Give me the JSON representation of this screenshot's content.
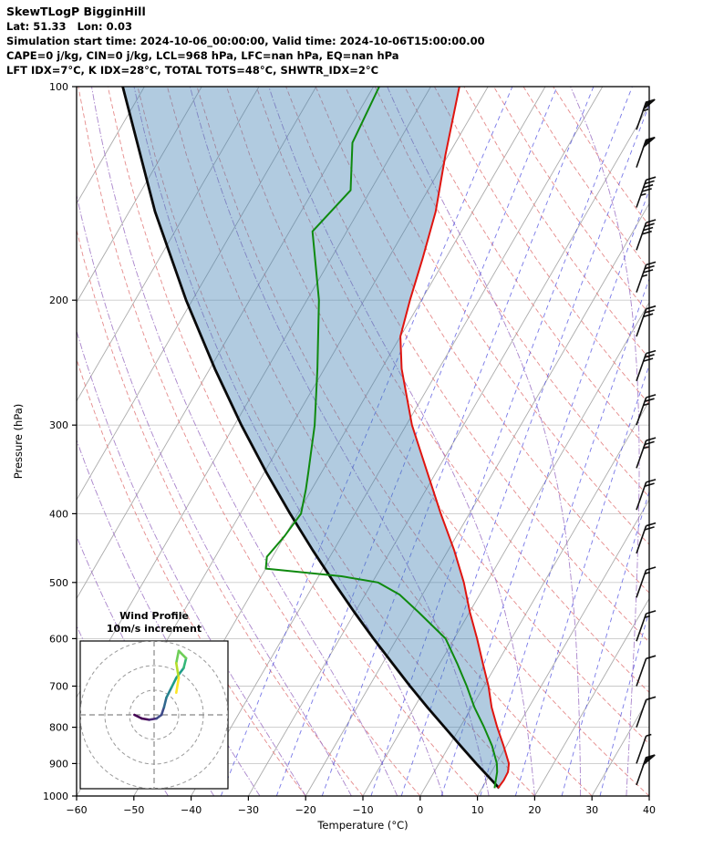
{
  "header": {
    "line1": "SkewTLogP BigginHill",
    "line2": "Lat: 51.33   Lon: 0.03",
    "line3": "Simulation start time: 2024-10-06_00:00:00, Valid time: 2024-10-06T15:00:00.00",
    "line4": "CAPE=0 j/kg, CIN=0 j/kg, LCL=968 hPa, LFC=nan hPa, EQ=nan hPa",
    "line5": "LFT IDX=7°C, K IDX=28°C, TOTAL TOTS=48°C, SHWTR_IDX=2°C"
  },
  "chart_data": {
    "type": "skewt-log-p",
    "x_axis": {
      "label": "Temperature (°C)",
      "ticks": [
        -60,
        -50,
        -40,
        -30,
        -20,
        -10,
        0,
        10,
        20,
        30,
        40
      ],
      "range": [
        -60,
        40
      ]
    },
    "y_axis": {
      "label": "Pressure (hPa)",
      "ticks": [
        100,
        200,
        300,
        400,
        500,
        600,
        700,
        800,
        900,
        1000
      ],
      "range_hpa": [
        100,
        1000
      ],
      "scale": "log"
    },
    "temperature_profile": {
      "color": "#e01510",
      "points": [
        [
          975,
          12.8
        ],
        [
          950,
          13.0
        ],
        [
          925,
          12.9
        ],
        [
          900,
          12.2
        ],
        [
          850,
          9.5
        ],
        [
          800,
          6.5
        ],
        [
          750,
          3.5
        ],
        [
          700,
          0.8
        ],
        [
          650,
          -2.5
        ],
        [
          600,
          -6.0
        ],
        [
          550,
          -10.0
        ],
        [
          500,
          -14.0
        ],
        [
          450,
          -19.0
        ],
        [
          400,
          -25.0
        ],
        [
          350,
          -31.5
        ],
        [
          300,
          -39.0
        ],
        [
          250,
          -46.5
        ],
        [
          225,
          -50.0
        ],
        [
          200,
          -52.0
        ],
        [
          175,
          -54.0
        ],
        [
          150,
          -56.5
        ],
        [
          125,
          -60.5
        ],
        [
          100,
          -65.0
        ]
      ]
    },
    "dewpoint_profile": {
      "color": "#0f8a0f",
      "points": [
        [
          975,
          12.2
        ],
        [
          950,
          11.6
        ],
        [
          925,
          11.0
        ],
        [
          900,
          10.1
        ],
        [
          850,
          7.5
        ],
        [
          800,
          4.2
        ],
        [
          750,
          0.5
        ],
        [
          700,
          -3.0
        ],
        [
          650,
          -7.0
        ],
        [
          600,
          -11.5
        ],
        [
          550,
          -19.0
        ],
        [
          520,
          -24.0
        ],
        [
          500,
          -29.0
        ],
        [
          490,
          -36.0
        ],
        [
          478,
          -50.0
        ],
        [
          460,
          -51.0
        ],
        [
          430,
          -50.0
        ],
        [
          400,
          -49.4
        ],
        [
          370,
          -51.0
        ],
        [
          350,
          -52.3
        ],
        [
          300,
          -56.0
        ],
        [
          250,
          -61.2
        ],
        [
          200,
          -67.9
        ],
        [
          160,
          -76.0
        ],
        [
          140,
          -73.5
        ],
        [
          120,
          -78.0
        ],
        [
          100,
          -79.0
        ]
      ]
    },
    "parcel_profile": {
      "color": "#0a0a0a",
      "theta_c": 15.0,
      "points": [
        [
          975,
          13.0
        ],
        [
          950,
          10.9
        ],
        [
          900,
          6.5
        ],
        [
          850,
          2.0
        ],
        [
          800,
          -2.7
        ],
        [
          750,
          -7.7
        ],
        [
          700,
          -12.9
        ],
        [
          650,
          -18.3
        ],
        [
          600,
          -24.1
        ],
        [
          550,
          -30.2
        ],
        [
          500,
          -36.7
        ],
        [
          450,
          -43.7
        ],
        [
          400,
          -51.3
        ],
        [
          350,
          -59.6
        ],
        [
          300,
          -68.8
        ],
        [
          250,
          -79.1
        ],
        [
          200,
          -91.1
        ],
        [
          150,
          -105.5
        ],
        [
          100,
          -123.8
        ]
      ]
    },
    "shading": {
      "color": "#4682b4",
      "opacity": 0.42,
      "between": [
        "parcel_profile",
        "temperature_profile"
      ]
    },
    "background": {
      "isotherms": {
        "color": "#ababab",
        "start": -120,
        "end": 40,
        "step": 10
      },
      "dry_adiabats": {
        "color": "#e27d7d",
        "start": -20,
        "end": 160,
        "step": 10
      },
      "moist_adiabats": {
        "color": "#9a6fc2",
        "start": -44,
        "end": 36,
        "step": 8
      },
      "mixing_ratio": {
        "color": "#4a4adf",
        "values_g_kg": [
          0.2,
          0.5,
          1,
          2,
          3,
          5,
          8,
          12,
          20,
          30
        ]
      }
    },
    "wind_barbs": {
      "units": "kt",
      "color": "#111111",
      "staff_angle_deg": 70,
      "data": [
        [
          115,
          55
        ],
        [
          130,
          50
        ],
        [
          148,
          45
        ],
        [
          170,
          40
        ],
        [
          195,
          35
        ],
        [
          225,
          32
        ],
        [
          260,
          30
        ],
        [
          300,
          28
        ],
        [
          345,
          25
        ],
        [
          395,
          22
        ],
        [
          455,
          20
        ],
        [
          525,
          18
        ],
        [
          605,
          15
        ],
        [
          700,
          12
        ],
        [
          800,
          10
        ],
        [
          900,
          8
        ],
        [
          965,
          50
        ]
      ]
    },
    "hodograph": {
      "title_line1": "Wind Profile",
      "title_line2": "10m/s increment",
      "ring_interval_ms": 10,
      "rings_ms": [
        10,
        20,
        30
      ],
      "trace_uv_ms": [
        [
          -8,
          0
        ],
        [
          -5,
          -1.5
        ],
        [
          -2,
          -2
        ],
        [
          1,
          -1.5
        ],
        [
          3,
          0
        ],
        [
          4,
          3
        ],
        [
          5,
          7
        ],
        [
          7,
          11
        ],
        [
          9,
          15
        ],
        [
          12,
          19
        ],
        [
          13,
          23
        ],
        [
          10,
          26
        ],
        [
          9,
          21
        ],
        [
          10,
          15
        ],
        [
          9,
          9
        ]
      ],
      "colormap": [
        "#440154",
        "#482878",
        "#3e4a89",
        "#31688e",
        "#26828e",
        "#1f9e89",
        "#35b779",
        "#6ece58",
        "#b5de2b",
        "#fde725"
      ]
    }
  }
}
